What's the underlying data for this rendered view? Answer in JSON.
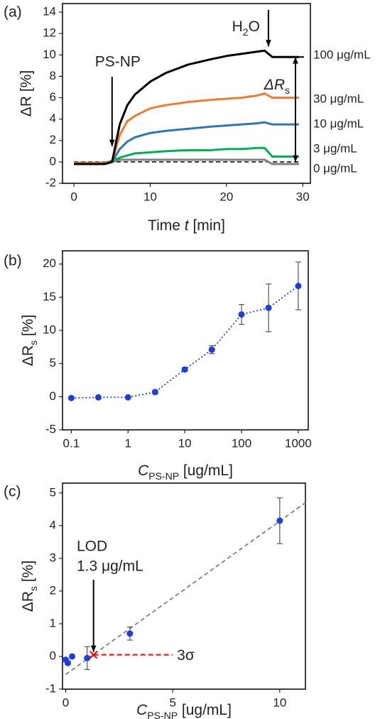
{
  "chart_data": [
    {
      "type": "line",
      "panel_label": "(a)",
      "x": [
        0,
        2,
        4,
        5,
        6,
        7,
        8,
        10,
        12,
        15,
        18,
        20,
        22,
        24,
        25,
        26,
        27,
        28,
        29.5
      ],
      "series": [
        {
          "name": "100 μg/mL",
          "color": "#000000",
          "values": [
            -0.2,
            -0.2,
            -0.2,
            0,
            3.5,
            5.3,
            6.3,
            7.5,
            8.3,
            9.1,
            9.6,
            9.9,
            10.1,
            10.3,
            10.4,
            9.8,
            9.8,
            9.8,
            9.8
          ]
        },
        {
          "name": "30 μg/mL",
          "color": "#ed7d31",
          "values": [
            -0.1,
            -0.1,
            -0.1,
            0,
            2.5,
            3.8,
            4.3,
            5.0,
            5.3,
            5.6,
            5.8,
            5.9,
            6.0,
            6.2,
            6.4,
            6.0,
            6.0,
            6.0,
            6.0
          ]
        },
        {
          "name": "10 μg/mL",
          "color": "#2e75b6",
          "values": [
            -0.1,
            -0.1,
            -0.1,
            0,
            1.2,
            1.9,
            2.3,
            2.7,
            2.9,
            3.1,
            3.3,
            3.4,
            3.5,
            3.6,
            3.7,
            3.5,
            3.5,
            3.5,
            3.5
          ]
        },
        {
          "name": "3 μg/mL",
          "color": "#00b050",
          "values": [
            -0.1,
            -0.1,
            -0.1,
            0.1,
            0.4,
            0.6,
            0.8,
            0.9,
            1.0,
            1.1,
            1.1,
            1.2,
            1.2,
            1.3,
            1.3,
            0.5,
            0.5,
            0.5,
            0.5
          ]
        },
        {
          "name": "0 μg/mL",
          "color": "#808080",
          "values": [
            -0.1,
            -0.1,
            -0.1,
            0,
            0.2,
            0.2,
            0.2,
            0.2,
            0.2,
            0.2,
            0.2,
            0.2,
            0.2,
            0.2,
            0.2,
            -0.2,
            -0.2,
            -0.2,
            -0.2
          ]
        }
      ],
      "xlim": [
        -1.5,
        31
      ],
      "ylim": [
        -2,
        14.8
      ],
      "xticks": [
        0,
        10,
        20,
        30
      ],
      "yticks": [
        -2,
        0,
        2,
        4,
        6,
        8,
        10,
        12,
        14
      ],
      "xlabel": [
        "Time ",
        "t",
        " [min]"
      ],
      "ylabel": "ΔR [%]",
      "reference_line": 0,
      "injection": {
        "label": "PS-NP",
        "time": 5
      },
      "rinse": {
        "label": [
          "H",
          "2",
          "O"
        ],
        "time": 25.5
      },
      "response": [
        "ΔR",
        "s"
      ]
    },
    {
      "type": "scatter",
      "panel_label": "(b)",
      "log_x": true,
      "connect": "dotted",
      "color": "#1f3fdb",
      "x": [
        0.1,
        0.3,
        1,
        3,
        10,
        30,
        100,
        300,
        1000
      ],
      "values": [
        -0.2,
        -0.1,
        -0.1,
        0.7,
        4.1,
        7.1,
        12.4,
        13.4,
        16.7
      ],
      "errors": [
        0.1,
        0.05,
        0.05,
        0.3,
        0.3,
        0.6,
        1.5,
        3.6,
        3.6
      ],
      "xlim": [
        0.07,
        1500
      ],
      "ylim": [
        -5,
        22
      ],
      "xticks": [
        0.1,
        1,
        10,
        100,
        1000
      ],
      "yticks": [
        -5,
        0,
        5,
        10,
        15,
        20
      ],
      "xlabel": [
        "C",
        "PS-NP",
        " [ug/mL]"
      ],
      "ylabel": [
        "ΔR",
        "s",
        " [%]"
      ]
    },
    {
      "type": "scatter",
      "panel_label": "(c)",
      "color": "#1f3fdb",
      "x": [
        0,
        0.1,
        0.3,
        1,
        3,
        10
      ],
      "values": [
        -0.1,
        -0.2,
        0,
        -0.05,
        0.7,
        4.15
      ],
      "errors": [
        0.05,
        0.05,
        0.05,
        0.35,
        0.2,
        0.7
      ],
      "xlim": [
        -0.15,
        11.2
      ],
      "ylim": [
        -1,
        5.3
      ],
      "xticks": [
        0,
        5,
        10
      ],
      "yticks": [
        -1,
        0,
        1,
        2,
        3,
        4,
        5
      ],
      "xlabel": [
        "C",
        "PS-NP",
        " [ug/mL]"
      ],
      "ylabel": [
        "ΔR",
        "s",
        " [%]"
      ],
      "fit": {
        "x": [
          0,
          11.2
        ],
        "values": [
          -0.55,
          4.7
        ],
        "color": "#808080"
      },
      "lod": {
        "label": "LOD",
        "x": 1.3,
        "x_label": "1.3 μg/mL",
        "y": 0.05,
        "color": "#ff0000"
      },
      "sigma_line": {
        "x": [
          1.3,
          5
        ],
        "values": [
          0.05,
          0.05
        ],
        "label": "3σ"
      }
    }
  ]
}
